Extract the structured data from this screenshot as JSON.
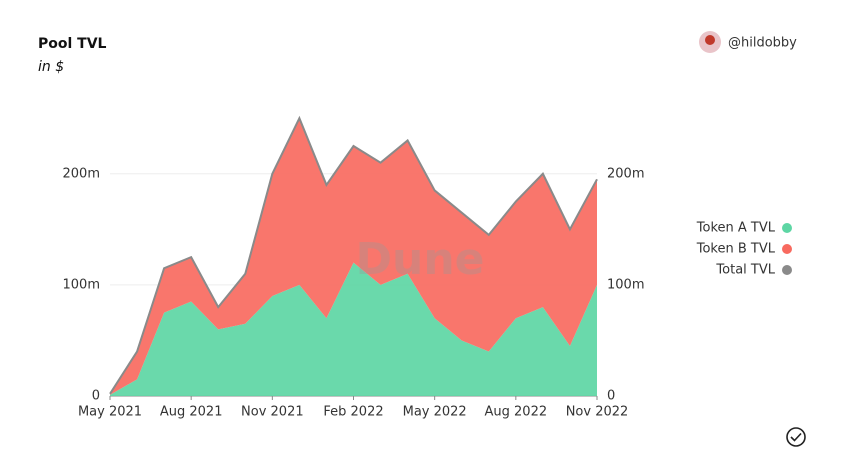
{
  "chart_data": {
    "type": "stacked-area",
    "title": "Pool TVL",
    "subtitle": "in $",
    "author": "@hildobby",
    "watermark": "Dune",
    "x": [
      "2021-05",
      "2021-06",
      "2021-07",
      "2021-08",
      "2021-09",
      "2021-10",
      "2021-11",
      "2021-12",
      "2022-01",
      "2022-02",
      "2022-03",
      "2022-04",
      "2022-05",
      "2022-06",
      "2022-07",
      "2022-08",
      "2022-09",
      "2022-10",
      "2022-11"
    ],
    "xticks": [
      {
        "value": "2021-05",
        "label": "May 2021"
      },
      {
        "value": "2021-08",
        "label": "Aug 2021"
      },
      {
        "value": "2021-11",
        "label": "Nov 2021"
      },
      {
        "value": "2022-02",
        "label": "Feb 2022"
      },
      {
        "value": "2022-05",
        "label": "May 2022"
      },
      {
        "value": "2022-08",
        "label": "Aug 2022"
      },
      {
        "value": "2022-11",
        "label": "Nov 2022"
      }
    ],
    "series": [
      {
        "name": "Token A TVL",
        "color": "#5dd6a4",
        "values": [
          1000000,
          15000000,
          75000000,
          85000000,
          60000000,
          65000000,
          90000000,
          100000000,
          70000000,
          120000000,
          100000000,
          110000000,
          70000000,
          50000000,
          40000000,
          70000000,
          80000000,
          45000000,
          100000000
        ]
      },
      {
        "name": "Token B TVL",
        "color": "#f86a5f",
        "values": [
          1000000,
          25000000,
          40000000,
          40000000,
          20000000,
          45000000,
          110000000,
          150000000,
          120000000,
          105000000,
          110000000,
          120000000,
          115000000,
          115000000,
          105000000,
          105000000,
          120000000,
          105000000,
          95000000
        ]
      },
      {
        "name": "Total TVL",
        "color": "#8a8a8a",
        "line": true,
        "values": [
          2000000,
          40000000,
          115000000,
          125000000,
          80000000,
          110000000,
          200000000,
          250000000,
          190000000,
          225000000,
          210000000,
          230000000,
          185000000,
          165000000,
          145000000,
          175000000,
          200000000,
          150000000,
          195000000
        ]
      }
    ],
    "ylim": [
      0,
      270000000
    ],
    "yticks": [
      0,
      {
        "value": 100000000,
        "label": "100m"
      },
      {
        "value": 200000000,
        "label": "200m"
      }
    ],
    "y2lim": [
      0,
      270000000
    ],
    "y2ticks": [
      0,
      {
        "value": 100000000,
        "label": "100m"
      },
      {
        "value": 200000000,
        "label": "200m"
      }
    ],
    "grid": true,
    "legend": "right"
  }
}
